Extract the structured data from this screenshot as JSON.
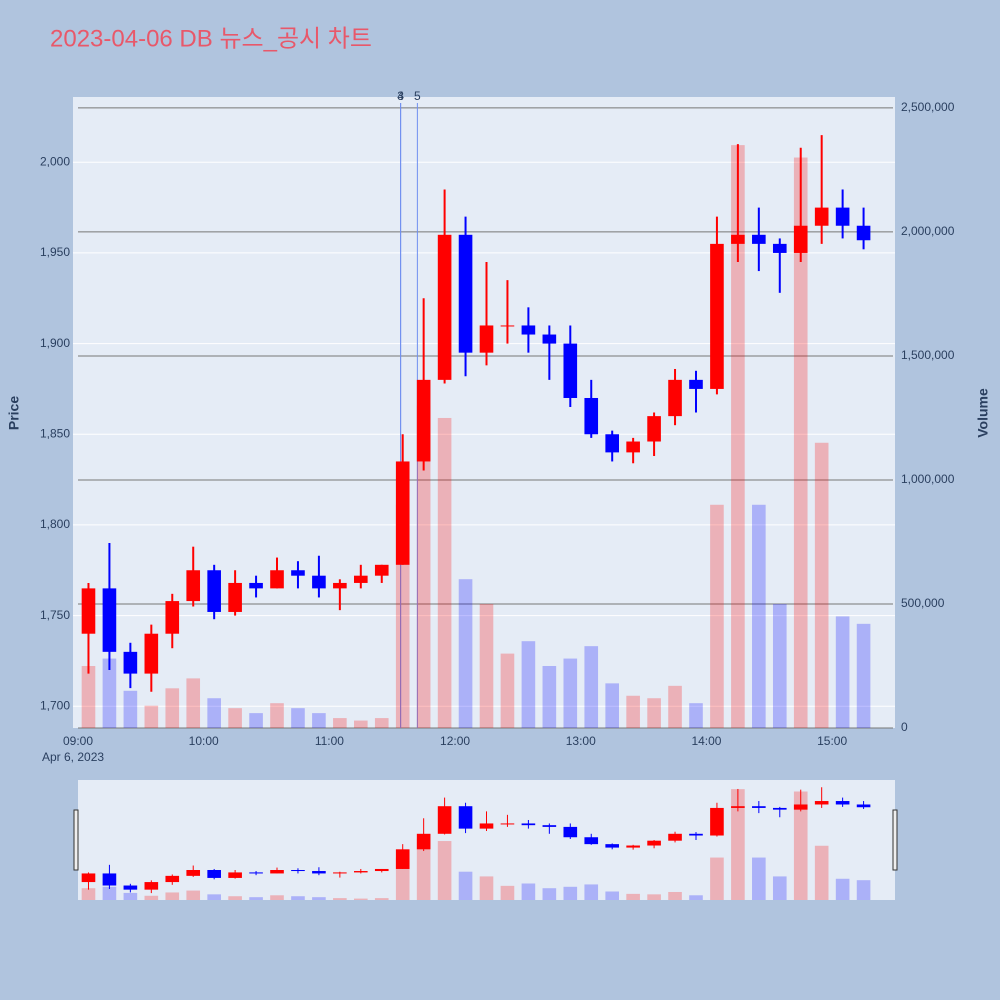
{
  "chart_data": {
    "type": "candlestick",
    "title": "2023-04-06 DB 뉴스_공시 차트",
    "y_label": "Price",
    "y2_label": "Volume",
    "x_sublabel": "Apr 6, 2023",
    "increasing_color": "#ff0000",
    "decreasing_color": "#0000ff",
    "x": [
      "09:00",
      "09:10",
      "09:20",
      "09:30",
      "09:40",
      "09:50",
      "10:00",
      "10:10",
      "10:20",
      "10:30",
      "10:40",
      "10:50",
      "11:00",
      "11:10",
      "11:20",
      "11:30",
      "11:40",
      "11:50",
      "12:00",
      "12:10",
      "12:20",
      "12:30",
      "12:40",
      "12:50",
      "13:00",
      "13:10",
      "13:20",
      "13:30",
      "13:40",
      "13:50",
      "14:00",
      "14:10",
      "14:20",
      "14:30",
      "14:40",
      "14:50",
      "15:00",
      "15:10"
    ],
    "open": [
      1740,
      1765,
      1730,
      1718,
      1740,
      1758,
      1775,
      1752,
      1768,
      1765,
      1775,
      1772,
      1765,
      1768,
      1772,
      1778,
      1835,
      1880,
      1960,
      1895,
      1910,
      1910,
      1905,
      1900,
      1870,
      1850,
      1840,
      1846,
      1860,
      1880,
      1875,
      1955,
      1960,
      1955,
      1950,
      1965,
      1975,
      1965
    ],
    "high": [
      1768,
      1790,
      1735,
      1745,
      1762,
      1788,
      1778,
      1775,
      1772,
      1782,
      1780,
      1783,
      1770,
      1778,
      1778,
      1850,
      1925,
      1985,
      1970,
      1945,
      1935,
      1920,
      1910,
      1910,
      1880,
      1852,
      1848,
      1862,
      1886,
      1885,
      1970,
      2010,
      1975,
      1958,
      2008,
      2015,
      1985,
      1975
    ],
    "low": [
      1718,
      1720,
      1710,
      1708,
      1732,
      1755,
      1748,
      1750,
      1760,
      1765,
      1765,
      1760,
      1753,
      1765,
      1768,
      1778,
      1830,
      1878,
      1882,
      1888,
      1900,
      1895,
      1880,
      1865,
      1848,
      1835,
      1834,
      1838,
      1855,
      1862,
      1872,
      1945,
      1940,
      1928,
      1945,
      1955,
      1958,
      1952
    ],
    "close": [
      1765,
      1730,
      1718,
      1740,
      1758,
      1775,
      1752,
      1768,
      1765,
      1775,
      1772,
      1765,
      1768,
      1772,
      1778,
      1835,
      1880,
      1960,
      1895,
      1910,
      1910,
      1905,
      1900,
      1870,
      1850,
      1840,
      1846,
      1860,
      1880,
      1875,
      1955,
      1960,
      1955,
      1950,
      1965,
      1975,
      1965,
      1957
    ],
    "volume": [
      250000,
      280000,
      150000,
      90000,
      160000,
      200000,
      120000,
      80000,
      60000,
      100000,
      80000,
      60000,
      40000,
      30000,
      40000,
      900000,
      1300000,
      1250000,
      600000,
      500000,
      300000,
      350000,
      250000,
      280000,
      330000,
      180000,
      130000,
      120000,
      170000,
      100000,
      900000,
      2350000,
      900000,
      500000,
      2300000,
      1150000,
      450000,
      420000
    ],
    "xlim": [
      "09:00",
      "15:30"
    ],
    "xticks": [
      "09:00",
      "10:00",
      "11:00",
      "12:00",
      "13:00",
      "14:00",
      "15:00"
    ],
    "ylim": [
      1688,
      2036
    ],
    "yticks": [
      {
        "value": 1700,
        "label": "1,700"
      },
      {
        "value": 1750,
        "label": "1,750"
      },
      {
        "value": 1800,
        "label": "1,800"
      },
      {
        "value": 1850,
        "label": "1,850"
      },
      {
        "value": 1900,
        "label": "1,900"
      },
      {
        "value": 1950,
        "label": "1,950"
      },
      {
        "value": 2000,
        "label": "2,000"
      }
    ],
    "y2lim": [
      0,
      2544000
    ],
    "y2ticks": [
      0,
      {
        "value": 500000,
        "label": "500,000"
      },
      {
        "value": 1000000,
        "label": "1,000,000"
      },
      {
        "value": 1500000,
        "label": "1,500,000"
      },
      {
        "value": 2000000,
        "label": "2,000,000"
      },
      {
        "value": 2500000,
        "label": "2,500,000"
      }
    ],
    "annotations": [
      {
        "x": "11:34",
        "text": "3"
      },
      {
        "x": "11:34",
        "text": "4"
      },
      {
        "x": "11:42",
        "text": "5"
      }
    ],
    "grid": true
  }
}
